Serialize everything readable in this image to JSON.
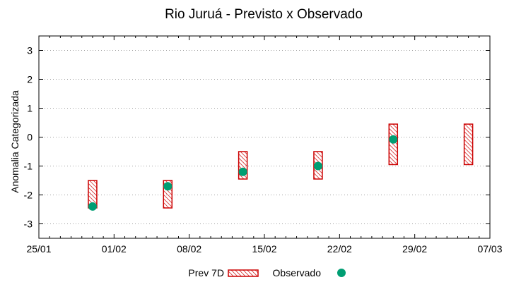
{
  "chart_data": {
    "type": "bar",
    "title": "Rio Juruá - Previsto x Observado",
    "xlabel": "",
    "ylabel": "Anomalia Categorizada",
    "x_axis": {
      "type": "date",
      "range": [
        "2020-01-25",
        "2020-03-07"
      ],
      "ticks": [
        "2020-01-25",
        "2020-02-01",
        "2020-02-08",
        "2020-02-15",
        "2020-02-22",
        "2020-02-29",
        "2020-03-07"
      ],
      "tick_labels": [
        "25/01",
        "01/02",
        "08/02",
        "15/02",
        "22/02",
        "29/02",
        "07/03"
      ]
    },
    "ylim": [
      -3.5,
      3.5
    ],
    "yticks": [
      -3,
      -2,
      -1,
      0,
      1,
      2,
      3
    ],
    "grid": true,
    "legend_position": "bottom",
    "series": [
      {
        "name": "Prev 7D",
        "kind": "range-box",
        "color": "#cc0000",
        "points": [
          {
            "x": "2020-01-30",
            "low": -2.45,
            "high": -1.5
          },
          {
            "x": "2020-02-06",
            "low": -2.45,
            "high": -1.5
          },
          {
            "x": "2020-02-13",
            "low": -1.45,
            "high": -0.5
          },
          {
            "x": "2020-02-20",
            "low": -1.45,
            "high": -0.5
          },
          {
            "x": "2020-02-27",
            "low": -0.95,
            "high": 0.45
          },
          {
            "x": "2020-03-05",
            "low": -0.95,
            "high": 0.45
          }
        ]
      },
      {
        "name": "Observado",
        "kind": "point",
        "color": "#009e73",
        "points": [
          {
            "x": "2020-01-30",
            "y": -2.4
          },
          {
            "x": "2020-02-06",
            "y": -1.7
          },
          {
            "x": "2020-02-13",
            "y": -1.2
          },
          {
            "x": "2020-02-20",
            "y": -1.0
          },
          {
            "x": "2020-02-27",
            "y": -0.08
          }
        ]
      }
    ]
  }
}
